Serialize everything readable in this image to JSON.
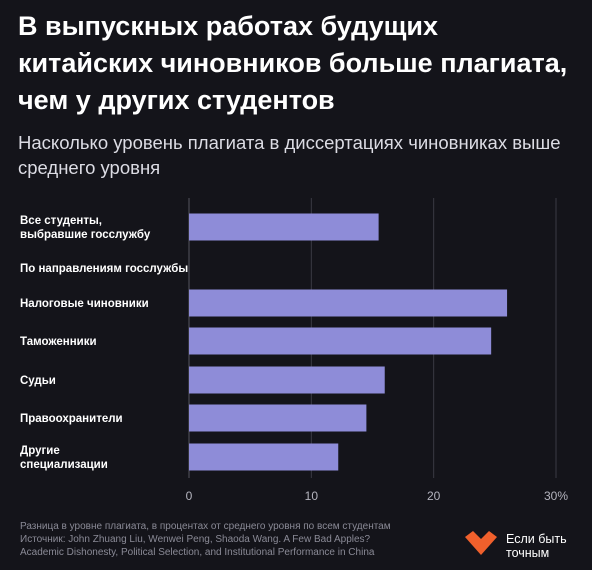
{
  "title": "В выпускных работах будущих китайских чиновников больше плагиата, чем у других студентов",
  "subtitle": "Насколько уровень плагиата в диссертациях чиновниках выше среднего уровня",
  "chart_data": {
    "type": "bar",
    "orientation": "horizontal",
    "rows": [
      {
        "label": [
          "Все студенты,",
          "выбравшие госслужбу"
        ],
        "value": 15.5
      },
      {
        "label": [
          "По направлениям госслужбы"
        ],
        "value": null,
        "group_header": true
      },
      {
        "label": [
          "Налоговые чиновники"
        ],
        "value": 26
      },
      {
        "label": [
          "Таможенники"
        ],
        "value": 24.7
      },
      {
        "label": [
          "Судьи"
        ],
        "value": 16
      },
      {
        "label": [
          "Правоохранители"
        ],
        "value": 14.5
      },
      {
        "label": [
          "Другие",
          "специализации"
        ],
        "value": 12.2
      }
    ],
    "x_ticks": [
      "0",
      "10",
      "20",
      "30%"
    ],
    "x_tick_values": [
      0,
      10,
      20,
      30
    ],
    "xlim": [
      0,
      30
    ],
    "grid": true,
    "bar_color": "#8e8cd8"
  },
  "footer": {
    "note": "Разница в уровне плагиата, в процентах от среднего уровня по всем студентам",
    "source_line1": "Источник: John Zhuang Liu, Wenwei Peng, Shaoda Wang. A Few Bad Apples?",
    "source_line2": "Academic Dishonesty, Political Selection, and Institutional Performance in China"
  },
  "logo": {
    "line1": "Если быть",
    "line2": "точным",
    "color": "#f0602c"
  }
}
